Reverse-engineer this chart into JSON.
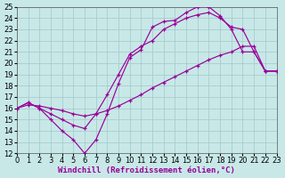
{
  "background_color": "#c8e8e8",
  "grid_color": "#a8cccc",
  "line_color": "#990099",
  "xlim": [
    0,
    23
  ],
  "ylim": [
    12,
    25
  ],
  "xlabel": "Windchill (Refroidissement éolien,°C)",
  "xlabel_fontsize": 6.5,
  "xticks": [
    0,
    1,
    2,
    3,
    4,
    5,
    6,
    7,
    8,
    9,
    10,
    11,
    12,
    13,
    14,
    15,
    16,
    17,
    18,
    19,
    20,
    21,
    22,
    23
  ],
  "yticks": [
    12,
    13,
    14,
    15,
    16,
    17,
    18,
    19,
    20,
    21,
    22,
    23,
    24,
    25
  ],
  "tick_fontsize": 6,
  "line1_x": [
    0,
    1,
    2,
    3,
    4,
    5,
    6,
    7,
    8,
    9,
    10,
    11,
    12,
    13,
    14,
    15,
    16,
    17,
    18,
    19,
    20,
    21,
    22,
    23
  ],
  "line1_y": [
    16.0,
    16.5,
    16.0,
    15.0,
    14.0,
    13.2,
    12.0,
    13.2,
    15.5,
    18.2,
    20.5,
    21.2,
    23.2,
    23.7,
    23.8,
    24.5,
    25.0,
    25.0,
    24.2,
    23.0,
    21.0,
    21.0,
    19.3,
    19.3
  ],
  "line2_x": [
    0,
    1,
    2,
    3,
    4,
    5,
    6,
    7,
    8,
    9,
    10,
    11,
    12,
    13,
    14,
    15,
    16,
    17,
    18,
    19,
    20,
    21,
    22,
    23
  ],
  "line2_y": [
    16.0,
    16.5,
    16.0,
    15.5,
    15.0,
    14.5,
    14.2,
    15.5,
    17.2,
    19.0,
    20.8,
    21.5,
    22.0,
    23.0,
    23.5,
    24.0,
    24.3,
    24.5,
    24.0,
    23.2,
    23.0,
    21.0,
    19.3,
    19.3
  ],
  "line3_x": [
    0,
    1,
    2,
    3,
    4,
    5,
    6,
    7,
    8,
    9,
    10,
    11,
    12,
    13,
    14,
    15,
    16,
    17,
    18,
    19,
    20,
    21,
    22,
    23
  ],
  "line3_y": [
    16.0,
    16.3,
    16.2,
    16.0,
    15.8,
    15.5,
    15.3,
    15.5,
    15.8,
    16.2,
    16.7,
    17.2,
    17.8,
    18.3,
    18.8,
    19.3,
    19.8,
    20.3,
    20.7,
    21.0,
    21.5,
    21.5,
    19.3,
    19.3
  ]
}
